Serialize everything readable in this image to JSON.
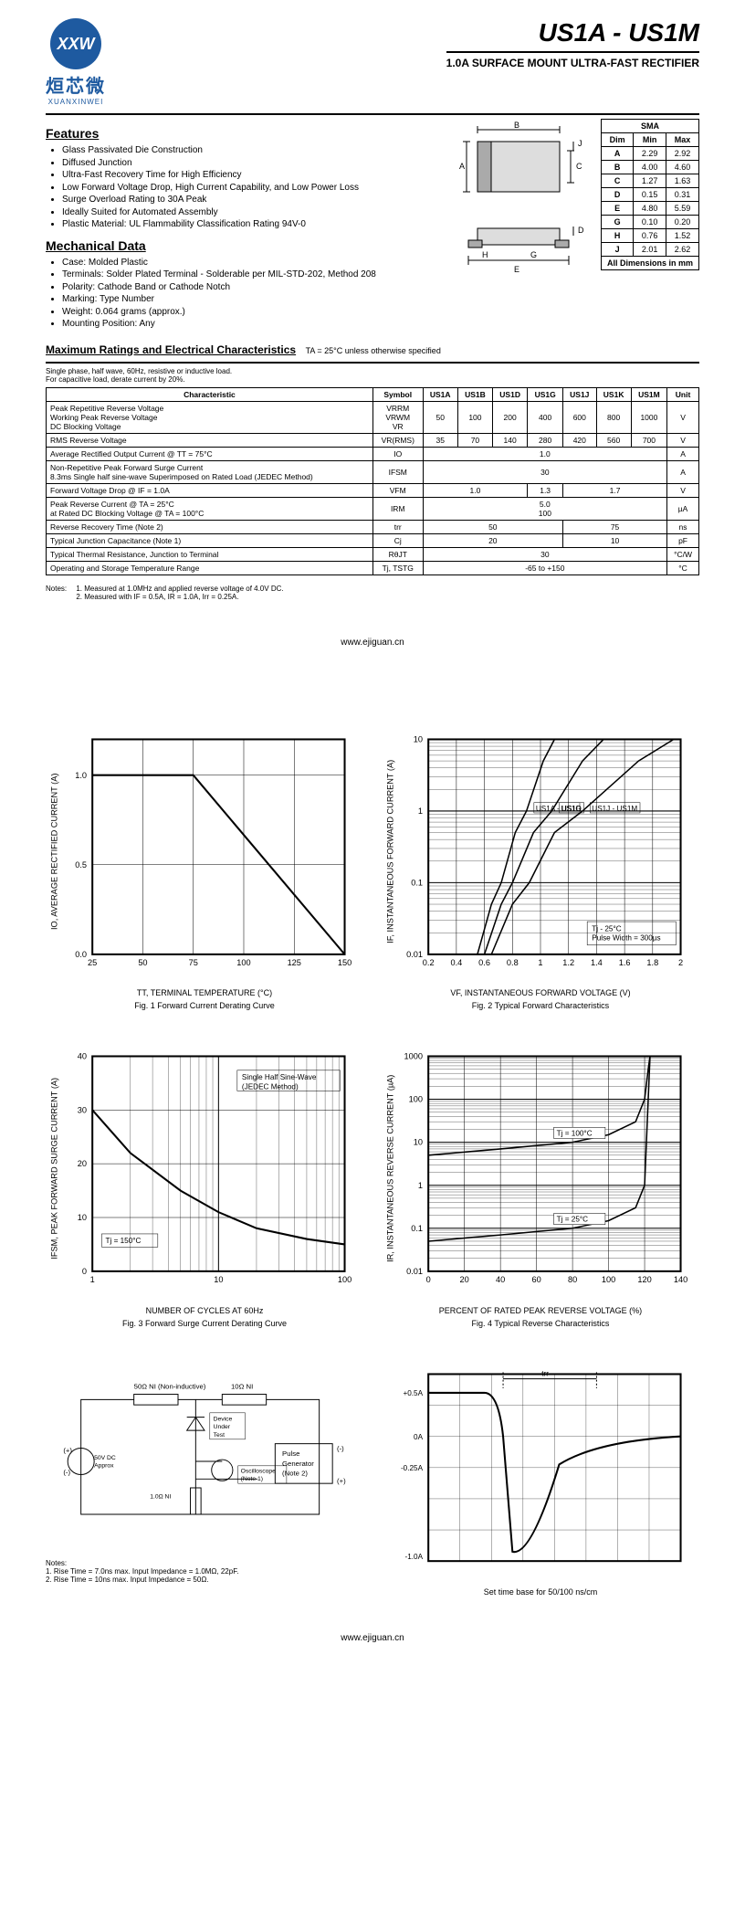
{
  "header": {
    "logo_abbrev": "XXW",
    "logo_cn": "烜芯微",
    "logo_en": "XUANXINWEI",
    "part_title": "US1A - US1M",
    "sub_title": "1.0A SURFACE MOUNT ULTRA-FAST RECTIFIER"
  },
  "features": {
    "title": "Features",
    "items": [
      "Glass Passivated Die Construction",
      "Diffused Junction",
      "Ultra-Fast Recovery Time for High Efficiency",
      "Low Forward Voltage Drop, High Current Capability, and Low Power Loss",
      "Surge Overload Rating to 30A Peak",
      "Ideally Suited for Automated Assembly",
      "Plastic Material: UL Flammability Classification Rating 94V-0"
    ]
  },
  "mechanical": {
    "title": "Mechanical Data",
    "items": [
      "Case: Molded Plastic",
      "Terminals: Solder Plated Terminal - Solderable per MIL-STD-202, Method 208",
      "Polarity: Cathode Band or Cathode Notch",
      "Marking: Type Number",
      "Weight: 0.064 grams (approx.)",
      "Mounting Position: Any"
    ]
  },
  "dim_table": {
    "header": [
      "Dim",
      "Min",
      "Max"
    ],
    "pkg": "SMA",
    "rows": [
      [
        "A",
        "2.29",
        "2.92"
      ],
      [
        "B",
        "4.00",
        "4.60"
      ],
      [
        "C",
        "1.27",
        "1.63"
      ],
      [
        "D",
        "0.15",
        "0.31"
      ],
      [
        "E",
        "4.80",
        "5.59"
      ],
      [
        "G",
        "0.10",
        "0.20"
      ],
      [
        "H",
        "0.76",
        "1.52"
      ],
      [
        "J",
        "2.01",
        "2.62"
      ]
    ],
    "footer": "All Dimensions in mm"
  },
  "ratings": {
    "title": "Maximum Ratings and Electrical Characteristics",
    "cond": "TA = 25°C unless otherwise specified",
    "note": "Single phase, half wave, 60Hz, resistive or inductive load.\nFor capacitive load, derate current by 20%.",
    "headers": [
      "Characteristic",
      "Symbol",
      "US1A",
      "US1B",
      "US1D",
      "US1G",
      "US1J",
      "US1K",
      "US1M",
      "Unit"
    ],
    "rows": [
      {
        "char": "Peak Repetitive Reverse Voltage\nWorking Peak Reverse Voltage\nDC Blocking Voltage",
        "sym": "VRRM\nVRWM\nVR",
        "vals": [
          "50",
          "100",
          "200",
          "400",
          "600",
          "800",
          "1000"
        ],
        "unit": "V"
      },
      {
        "char": "RMS Reverse Voltage",
        "sym": "VR(RMS)",
        "vals": [
          "35",
          "70",
          "140",
          "280",
          "420",
          "560",
          "700"
        ],
        "unit": "V"
      },
      {
        "char": "Average Rectified Output Current         @ TT = 75°C",
        "sym": "IO",
        "span": "1.0",
        "unit": "A"
      },
      {
        "char": "Non-Repetitive Peak Forward Surge Current\n8.3ms Single half sine-wave Superimposed on Rated Load (JEDEC Method)",
        "sym": "IFSM",
        "span": "30",
        "unit": "A"
      },
      {
        "char": "Forward Voltage Drop                     @ IF = 1.0A",
        "sym": "VFM",
        "groups": [
          {
            "span": 3,
            "v": "1.0"
          },
          {
            "span": 1,
            "v": "1.3"
          },
          {
            "span": 3,
            "v": "1.7"
          }
        ],
        "unit": "V"
      },
      {
        "char": "Peak Reverse Current                     @ TA = 25°C\nat Rated DC Blocking Voltage             @ TA = 100°C",
        "sym": "IRM",
        "span": "5.0\n100",
        "unit": "µA"
      },
      {
        "char": "Reverse Recovery Time (Note 2)",
        "sym": "trr",
        "groups": [
          {
            "span": 4,
            "v": "50"
          },
          {
            "span": 3,
            "v": "75"
          }
        ],
        "unit": "ns"
      },
      {
        "char": "Typical Junction Capacitance (Note 1)",
        "sym": "Cj",
        "groups": [
          {
            "span": 4,
            "v": "20"
          },
          {
            "span": 3,
            "v": "10"
          }
        ],
        "unit": "pF"
      },
      {
        "char": "Typical Thermal Resistance, Junction to Terminal",
        "sym": "RθJT",
        "span": "30",
        "unit": "°C/W"
      },
      {
        "char": "Operating and Storage Temperature Range",
        "sym": "Tj, TSTG",
        "span": "-65 to +150",
        "unit": "°C"
      }
    ]
  },
  "notes": {
    "label": "Notes:",
    "items": [
      "1.   Measured at 1.0MHz and applied reverse voltage of 4.0V DC.",
      "2.   Measured with IF = 0.5A, IR = 1.0A, Irr = 0.25A."
    ]
  },
  "footer_url": "www.ejiguan.cn",
  "charts": {
    "fig1": {
      "xlabel": "TT, TERMINAL TEMPERATURE (°C)",
      "ylabel": "IO, AVERAGE RECTIFIED CURRENT (A)",
      "caption": "Fig. 1   Forward Current Derating Curve",
      "xlim": [
        25,
        150
      ],
      "xticks": [
        25,
        50,
        75,
        100,
        125,
        150
      ],
      "ylim": [
        0,
        1.2
      ],
      "yticks": [
        0,
        0.5,
        1.0
      ],
      "line": [
        [
          25,
          1.0
        ],
        [
          75,
          1.0
        ],
        [
          150,
          0
        ]
      ]
    },
    "fig2": {
      "xlabel": "VF, INSTANTANEOUS FORWARD VOLTAGE (V)",
      "ylabel": "IF, INSTANTANEOUS FORWARD CURRENT (A)",
      "caption": "Fig. 2   Typical Forward Characteristics",
      "xlim": [
        0.2,
        2.0
      ],
      "xticks": [
        0.2,
        0.4,
        0.6,
        0.8,
        1.0,
        1.2,
        1.4,
        1.6,
        1.8,
        2.0
      ],
      "ylogmin": 0.01,
      "ylogmax": 10,
      "note1": "Tj - 25°C",
      "note2": "Pulse Width = 300µs",
      "curves": {
        "US1A - US1D": [
          [
            0.55,
            0.01
          ],
          [
            0.65,
            0.05
          ],
          [
            0.72,
            0.1
          ],
          [
            0.82,
            0.5
          ],
          [
            0.9,
            1.0
          ],
          [
            1.02,
            5
          ],
          [
            1.1,
            10
          ]
        ],
        "US1G": [
          [
            0.6,
            0.01
          ],
          [
            0.72,
            0.05
          ],
          [
            0.8,
            0.1
          ],
          [
            0.95,
            0.5
          ],
          [
            1.08,
            1.0
          ],
          [
            1.3,
            5
          ],
          [
            1.45,
            10
          ]
        ],
        "US1J - US1M": [
          [
            0.65,
            0.01
          ],
          [
            0.8,
            0.05
          ],
          [
            0.92,
            0.1
          ],
          [
            1.1,
            0.5
          ],
          [
            1.3,
            1.0
          ],
          [
            1.7,
            5
          ],
          [
            1.95,
            10
          ]
        ]
      }
    },
    "fig3": {
      "xlabel": "NUMBER OF CYCLES AT 60Hz",
      "ylabel": "IFSM, PEAK FORWARD SURGE CURRENT (A)",
      "caption": "Fig. 3   Forward Surge Current Derating Curve",
      "xlogmin": 1,
      "xlogmax": 100,
      "ylim": [
        0,
        40
      ],
      "yticks": [
        0,
        10,
        20,
        30,
        40
      ],
      "note1": "Tj = 150°C",
      "note2": "Single Half Sine-Wave\n(JEDEC Method)",
      "line": [
        [
          1,
          30
        ],
        [
          2,
          22
        ],
        [
          5,
          15
        ],
        [
          10,
          11
        ],
        [
          20,
          8
        ],
        [
          50,
          6
        ],
        [
          100,
          5
        ]
      ]
    },
    "fig4": {
      "xlabel": "PERCENT OF RATED PEAK REVERSE VOLTAGE (%)",
      "ylabel": "IR, INSTANTANEOUS REVERSE CURRENT (µA)",
      "caption": "Fig. 4   Typical Reverse Characteristics",
      "xlim": [
        0,
        140
      ],
      "xticks": [
        0,
        20,
        40,
        60,
        80,
        100,
        120,
        140
      ],
      "ylogmin": 0.01,
      "ylogmax": 1000,
      "curves": {
        "Tj = 25°C": [
          [
            0,
            0.05
          ],
          [
            40,
            0.07
          ],
          [
            80,
            0.1
          ],
          [
            100,
            0.15
          ],
          [
            115,
            0.3
          ],
          [
            120,
            1
          ],
          [
            122,
            100
          ],
          [
            123,
            1000
          ]
        ],
        "Tj = 100°C": [
          [
            0,
            5
          ],
          [
            40,
            7
          ],
          [
            80,
            10
          ],
          [
            100,
            15
          ],
          [
            115,
            30
          ],
          [
            120,
            100
          ],
          [
            122,
            500
          ],
          [
            123,
            1000
          ]
        ]
      }
    },
    "fig5": {
      "labels": {
        "r1": "50Ω NI (Non-inductive)",
        "r2": "10Ω NI",
        "dut": "Device\nUnder\nTest",
        "pg": "Pulse\nGenerator\n(Note 2)",
        "dc": "50V DC\nApprox",
        "r3": "1.0Ω\nNI",
        "osc": "Oscilloscope\n(Note 1)",
        "plus": "(+)",
        "minus": "(-)"
      },
      "notes": "Notes:\n1. Rise Time = 7.0ns max. Input Impedance = 1.0MΩ, 22pF.\n2. Rise Time = 10ns max. Input Impedance = 50Ω."
    },
    "fig6": {
      "ylabels": [
        "+0.5A",
        "0A",
        "-0.25A",
        "-1.0A"
      ],
      "caption": "Set time base for 50/100 ns/cm",
      "trr_label": "trr"
    }
  }
}
